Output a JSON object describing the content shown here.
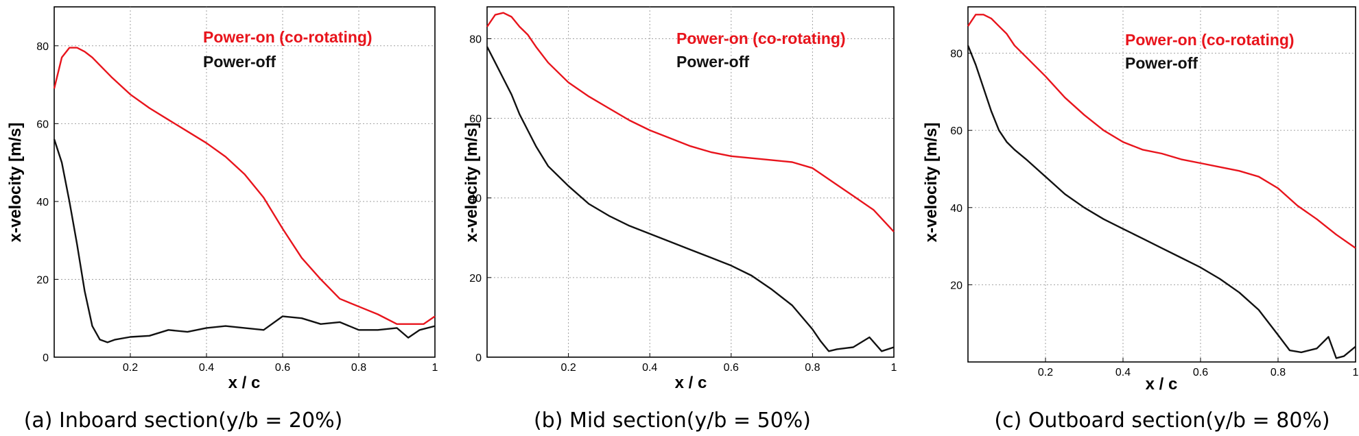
{
  "figure": {
    "colors": {
      "power_on": "#e8141c",
      "power_off": "#111111",
      "grid": "#a0a0a0"
    }
  },
  "chart_data": [
    {
      "type": "line",
      "caption": "(a) Inboard section(y/b = 20%)",
      "xlabel": "x / c",
      "ylabel": "x-velocity [m/s]",
      "xlim": [
        0,
        1
      ],
      "ylim": [
        0,
        90
      ],
      "xticks": [
        0.2,
        0.4,
        0.6,
        0.8,
        1
      ],
      "xtick_labels": [
        "0.2",
        "0.4",
        "0.6",
        "0.8",
        "1"
      ],
      "yticks": [
        0,
        20,
        40,
        60,
        80
      ],
      "ytick_labels": [
        "0",
        "20",
        "40",
        "60",
        "80"
      ],
      "grid": true,
      "legend_position": "top-right",
      "series": [
        {
          "name": "Power-on (co-rotating)",
          "color": "#e8141c",
          "x": [
            0,
            0.02,
            0.04,
            0.06,
            0.08,
            0.1,
            0.12,
            0.15,
            0.2,
            0.25,
            0.3,
            0.35,
            0.4,
            0.45,
            0.5,
            0.55,
            0.6,
            0.65,
            0.7,
            0.75,
            0.8,
            0.85,
            0.9,
            0.94,
            0.97,
            1.0
          ],
          "y": [
            69,
            77,
            79.5,
            79.5,
            78.5,
            77,
            75,
            72,
            67.5,
            64,
            61,
            58,
            55,
            51.5,
            47,
            41,
            33,
            25.5,
            20,
            15,
            13,
            11,
            8.5,
            8.5,
            8.5,
            10.5
          ]
        },
        {
          "name": "Power-off",
          "color": "#111111",
          "x": [
            0,
            0.02,
            0.04,
            0.06,
            0.08,
            0.1,
            0.12,
            0.14,
            0.16,
            0.2,
            0.25,
            0.3,
            0.35,
            0.4,
            0.45,
            0.5,
            0.55,
            0.6,
            0.65,
            0.7,
            0.75,
            0.8,
            0.85,
            0.9,
            0.93,
            0.96,
            1.0
          ],
          "y": [
            56,
            50,
            40,
            29,
            17,
            8,
            4.5,
            3.8,
            4.5,
            5.2,
            5.5,
            7,
            6.5,
            7.5,
            8,
            7.5,
            7,
            10.5,
            10,
            8.5,
            9,
            7,
            7,
            7.5,
            5,
            7,
            8
          ]
        }
      ]
    },
    {
      "type": "line",
      "caption": "(b) Mid section(y/b = 50%)",
      "xlabel": "x / c",
      "ylabel": "x-velocity [m/s]",
      "xlim": [
        0,
        1
      ],
      "ylim": [
        0,
        88
      ],
      "xticks": [
        0.2,
        0.4,
        0.6,
        0.8,
        1
      ],
      "xtick_labels": [
        "0.2",
        "0.4",
        "0.6",
        "0.8",
        "1"
      ],
      "yticks": [
        0,
        20,
        40,
        60,
        80
      ],
      "ytick_labels": [
        "0",
        "20",
        "40",
        "60",
        "80"
      ],
      "grid": true,
      "legend_position": "top-right",
      "series": [
        {
          "name": "Power-on (co-rotating)",
          "color": "#e8141c",
          "x": [
            0,
            0.02,
            0.04,
            0.06,
            0.08,
            0.1,
            0.12,
            0.15,
            0.2,
            0.25,
            0.3,
            0.35,
            0.4,
            0.45,
            0.5,
            0.55,
            0.6,
            0.65,
            0.7,
            0.75,
            0.8,
            0.85,
            0.9,
            0.95,
            1.0
          ],
          "y": [
            83,
            86,
            86.5,
            85.5,
            83,
            81,
            78,
            74,
            69,
            65.5,
            62.5,
            59.5,
            57,
            55,
            53,
            51.5,
            50.5,
            50,
            49.5,
            49,
            47.5,
            44,
            40.5,
            37,
            31.5
          ]
        },
        {
          "name": "Power-off",
          "color": "#111111",
          "x": [
            0,
            0.02,
            0.04,
            0.06,
            0.08,
            0.1,
            0.12,
            0.15,
            0.2,
            0.25,
            0.3,
            0.35,
            0.4,
            0.45,
            0.5,
            0.55,
            0.6,
            0.65,
            0.7,
            0.75,
            0.8,
            0.82,
            0.84,
            0.86,
            0.9,
            0.94,
            0.97,
            1.0
          ],
          "y": [
            78,
            74,
            70,
            66,
            61,
            57,
            53,
            48,
            43,
            38.5,
            35.5,
            33,
            31,
            29,
            27,
            25,
            23,
            20.5,
            17,
            13,
            7,
            4,
            1.5,
            2,
            2.5,
            5,
            1.5,
            2.5
          ]
        }
      ]
    },
    {
      "type": "line",
      "caption": "(c) Outboard section(y/b = 80%)",
      "xlabel": "x / c",
      "ylabel": "x-velocity [m/s]",
      "xlim": [
        0,
        1
      ],
      "ylim": [
        0,
        92
      ],
      "xticks": [
        0.2,
        0.4,
        0.6,
        0.8,
        1
      ],
      "xtick_labels": [
        "0.2",
        "0.4",
        "0.6",
        "0.8",
        "1"
      ],
      "yticks": [
        20,
        40,
        60,
        80
      ],
      "ytick_labels": [
        "20",
        "40",
        "60",
        "80"
      ],
      "grid": true,
      "legend_position": "top-right",
      "series": [
        {
          "name": "Power-on (co-rotating)",
          "color": "#e8141c",
          "x": [
            0,
            0.02,
            0.04,
            0.06,
            0.08,
            0.1,
            0.12,
            0.15,
            0.2,
            0.25,
            0.3,
            0.35,
            0.4,
            0.45,
            0.5,
            0.55,
            0.6,
            0.65,
            0.7,
            0.75,
            0.8,
            0.85,
            0.9,
            0.95,
            1.0
          ],
          "y": [
            87,
            90,
            90,
            89,
            87,
            85,
            82,
            79,
            74,
            68.5,
            64,
            60,
            57,
            55,
            54,
            52.5,
            51.5,
            50.5,
            49.5,
            48,
            45,
            40.5,
            37,
            33,
            29.5
          ]
        },
        {
          "name": "Power-off",
          "color": "#111111",
          "x": [
            0,
            0.02,
            0.04,
            0.06,
            0.08,
            0.1,
            0.12,
            0.15,
            0.2,
            0.25,
            0.3,
            0.35,
            0.4,
            0.45,
            0.5,
            0.55,
            0.6,
            0.65,
            0.7,
            0.75,
            0.8,
            0.83,
            0.86,
            0.9,
            0.93,
            0.95,
            0.97,
            1.0
          ],
          "y": [
            82,
            77,
            71,
            65,
            60,
            57,
            55,
            52.5,
            48,
            43.5,
            40,
            37,
            34.5,
            32,
            29.5,
            27,
            24.5,
            21.5,
            18,
            13.5,
            7,
            3,
            2.5,
            3.5,
            6.5,
            1,
            1.5,
            4
          ]
        }
      ]
    }
  ]
}
